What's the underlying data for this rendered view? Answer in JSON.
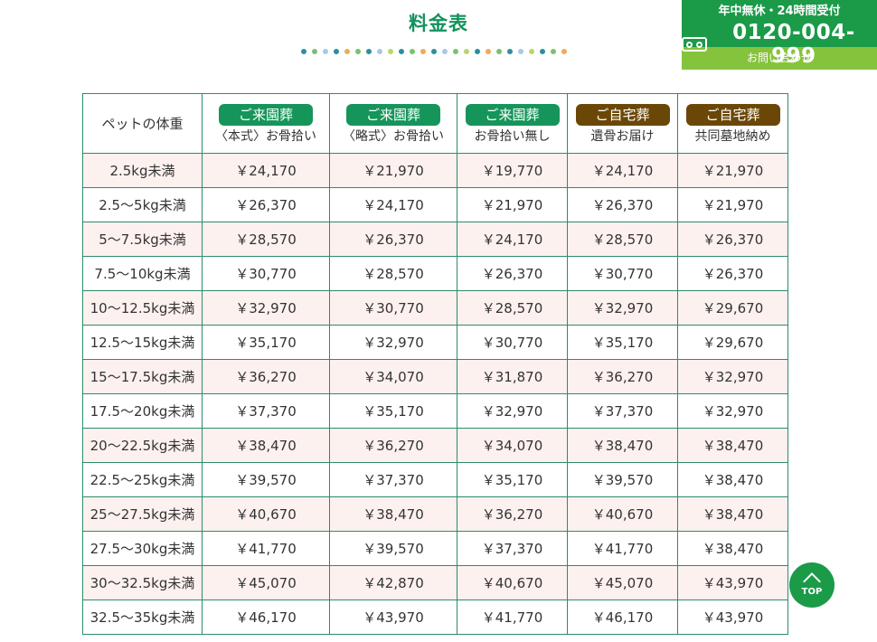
{
  "page_title": "料金表",
  "decor_dots": [
    "#2d8f9e",
    "#7cc06e",
    "#a9c9e3",
    "#2d8f9e",
    "#f0a95a",
    "#7cc06e",
    "#2d8f9e",
    "#a9c9e3",
    "#b8d66a",
    "#2d8f9e",
    "#7cc06e",
    "#f0a95a",
    "#2d8f9e",
    "#a9c9e3",
    "#7cc06e",
    "#b8d66a",
    "#2d8f9e",
    "#f0a95a",
    "#7cc06e",
    "#2d8f9e",
    "#a9c9e3",
    "#b8d66a",
    "#2d8f9e",
    "#7cc06e",
    "#f0a95a"
  ],
  "contact": {
    "note": "年中無休・24時間受付",
    "phone": "0120-004-999",
    "phone_icon": "freedial-icon",
    "inquiry": "お問い合わせ"
  },
  "table": {
    "weight_header": "ペットの体重",
    "columns": [
      {
        "badge": "ご来園葬",
        "sub": "〈本式〉お骨拾い",
        "color": "green"
      },
      {
        "badge": "ご来園葬",
        "sub": "〈略式〉お骨拾い",
        "color": "green"
      },
      {
        "badge": "ご来園葬",
        "sub": "お骨拾い無し",
        "color": "green"
      },
      {
        "badge": "ご自宅葬",
        "sub": "遺骨お届け",
        "color": "brown"
      },
      {
        "badge": "ご自宅葬",
        "sub": "共同墓地納め",
        "color": "brown"
      }
    ],
    "rows": [
      {
        "weight": "2.5kg未満",
        "prices": [
          "￥24,170",
          "￥21,970",
          "￥19,770",
          "￥24,170",
          "￥21,970"
        ]
      },
      {
        "weight": "2.5～5kg未満",
        "prices": [
          "￥26,370",
          "￥24,170",
          "￥21,970",
          "￥26,370",
          "￥21,970"
        ]
      },
      {
        "weight": "5～7.5kg未満",
        "prices": [
          "￥28,570",
          "￥26,370",
          "￥24,170",
          "￥28,570",
          "￥26,370"
        ]
      },
      {
        "weight": "7.5～10kg未満",
        "prices": [
          "￥30,770",
          "￥28,570",
          "￥26,370",
          "￥30,770",
          "￥26,370"
        ]
      },
      {
        "weight": "10～12.5kg未満",
        "prices": [
          "￥32,970",
          "￥30,770",
          "￥28,570",
          "￥32,970",
          "￥29,670"
        ]
      },
      {
        "weight": "12.5～15kg未満",
        "prices": [
          "￥35,170",
          "￥32,970",
          "￥30,770",
          "￥35,170",
          "￥29,670"
        ]
      },
      {
        "weight": "15～17.5kg未満",
        "prices": [
          "￥36,270",
          "￥34,070",
          "￥31,870",
          "￥36,270",
          "￥32,970"
        ]
      },
      {
        "weight": "17.5～20kg未満",
        "prices": [
          "￥37,370",
          "￥35,170",
          "￥32,970",
          "￥37,370",
          "￥32,970"
        ]
      },
      {
        "weight": "20～22.5kg未満",
        "prices": [
          "￥38,470",
          "￥36,270",
          "￥34,070",
          "￥38,470",
          "￥38,470"
        ]
      },
      {
        "weight": "22.5～25kg未満",
        "prices": [
          "￥39,570",
          "￥37,370",
          "￥35,170",
          "￥39,570",
          "￥38,470"
        ]
      },
      {
        "weight": "25～27.5kg未満",
        "prices": [
          "￥40,670",
          "￥38,470",
          "￥36,270",
          "￥40,670",
          "￥38,470"
        ]
      },
      {
        "weight": "27.5～30kg未満",
        "prices": [
          "￥41,770",
          "￥39,570",
          "￥37,370",
          "￥41,770",
          "￥38,470"
        ]
      },
      {
        "weight": "30～32.5kg未満",
        "prices": [
          "￥45,070",
          "￥42,870",
          "￥40,670",
          "￥45,070",
          "￥43,970"
        ]
      },
      {
        "weight": "32.5～35kg未満",
        "prices": [
          "￥46,170",
          "￥43,970",
          "￥41,770",
          "￥46,170",
          "￥43,970"
        ]
      }
    ]
  },
  "top_button": {
    "label": "TOP",
    "icon": "chevron-up-icon"
  },
  "colors": {
    "primary_green": "#13925c",
    "brown": "#6b4707",
    "light_green": "#86c33c",
    "row_pink": "#fdf1ef",
    "border": "#2e8b6b"
  }
}
